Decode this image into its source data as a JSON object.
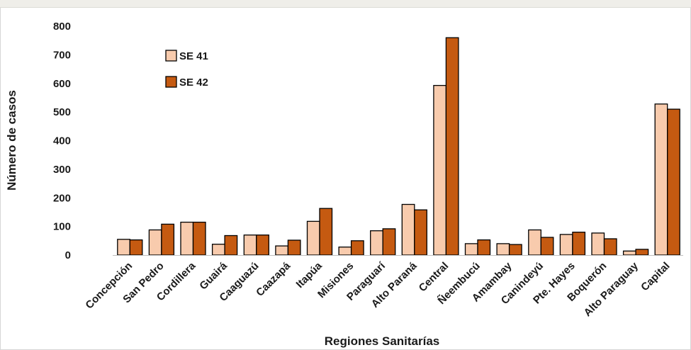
{
  "chart_data": {
    "type": "bar",
    "title": "",
    "xlabel": "Regiones Sanitarías",
    "ylabel": "Número de casos",
    "ylim": [
      0,
      800
    ],
    "yticks": [
      "0",
      "100",
      "200",
      "300",
      "400",
      "500",
      "600",
      "700",
      "800"
    ],
    "grid": false,
    "legend_position": "top-left",
    "categories": [
      "Concepción",
      "San Pedro",
      "Cordillera",
      "Guairá",
      "Caaguazú",
      "Caazapá",
      "Itapúa",
      "Misiones",
      "Paraguarí",
      "Alto Paraná",
      "Central",
      "Ñeembucú",
      "Amambay",
      "Canindeyú",
      "Pte. Hayes",
      "Boquerón",
      "Alto Paraguay",
      "Capital"
    ],
    "series": [
      {
        "name": "SE 41",
        "color": "#f8cbad",
        "values": [
          55,
          88,
          115,
          38,
          70,
          32,
          118,
          28,
          85,
          177,
          593,
          40,
          40,
          88,
          72,
          77,
          14,
          528
        ]
      },
      {
        "name": "SE 42",
        "color": "#c55a11",
        "values": [
          53,
          108,
          115,
          68,
          70,
          52,
          163,
          50,
          92,
          158,
          760,
          53,
          37,
          62,
          80,
          57,
          20,
          510
        ]
      }
    ]
  }
}
